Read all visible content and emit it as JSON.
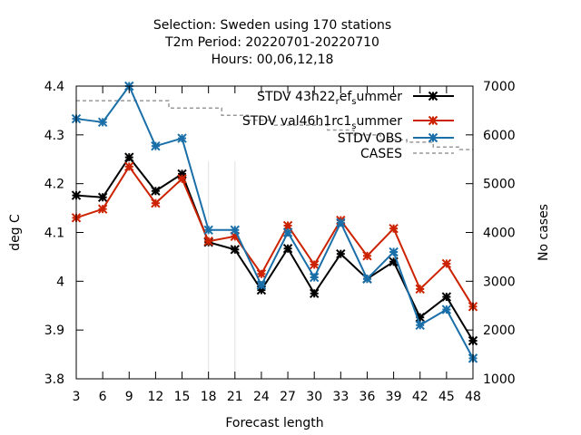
{
  "chart_data": {
    "type": "line",
    "title": [
      "Selection: Sweden using    170 stations",
      "T2m   Period: 20220701-20220710",
      "Hours:  00,06,12,18"
    ],
    "xlabel": "Forecast length",
    "ylabel": "deg C",
    "y2label": "No cases",
    "x": [
      3,
      6,
      9,
      12,
      15,
      18,
      21,
      24,
      27,
      30,
      33,
      36,
      39,
      42,
      45,
      48
    ],
    "xlim": [
      3,
      48
    ],
    "ylim": [
      3.8,
      4.4
    ],
    "y2lim": [
      1000,
      7000
    ],
    "yticks": [
      "3.8",
      "3.9",
      "4",
      "4.1",
      "4.2",
      "4.3",
      "4.4"
    ],
    "y2ticks": [
      "1000",
      "2000",
      "3000",
      "4000",
      "5000",
      "6000",
      "7000"
    ],
    "xticks": [
      "3",
      "6",
      "9",
      "12",
      "15",
      "18",
      "21",
      "24",
      "27",
      "30",
      "33",
      "36",
      "39",
      "42",
      "45",
      "48"
    ],
    "grid": false,
    "legend_position": "top-right",
    "series": [
      {
        "name": "STDV 43h22_ref_summer",
        "legend": {
          "pre": "STDV 43h22",
          "sub1": "r",
          "mid": "ef",
          "sub2": "s",
          "post": "ummer"
        },
        "color": "#000000",
        "marker": "asterisk",
        "axis": "y",
        "values": [
          4.176,
          4.172,
          4.254,
          4.185,
          4.22,
          4.08,
          4.065,
          3.982,
          4.067,
          3.975,
          4.056,
          4.005,
          4.04,
          3.926,
          3.968,
          3.878
        ]
      },
      {
        "name": "STDV val46h1rc1_summer",
        "legend": {
          "pre": "STDV val46h1rc1",
          "sub1": "",
          "mid": "",
          "sub2": "s",
          "post": "ummer"
        },
        "color": "#cc2200",
        "marker": "asterisk",
        "axis": "y",
        "values": [
          4.13,
          4.148,
          4.235,
          4.16,
          4.21,
          4.082,
          4.092,
          4.015,
          4.114,
          4.034,
          4.125,
          4.052,
          4.108,
          3.984,
          4.036,
          3.948
        ]
      },
      {
        "name": "STDV OBS",
        "legend": {
          "pre": "STDV OBS",
          "sub1": "",
          "mid": "",
          "sub2": "",
          "post": ""
        },
        "color": "#1a6fa8",
        "marker": "asterisk",
        "axis": "y",
        "values": [
          4.333,
          4.326,
          4.4,
          4.277,
          4.293,
          4.105,
          4.105,
          3.992,
          4.1,
          4.008,
          4.12,
          4.005,
          4.06,
          3.91,
          3.942,
          3.842
        ]
      },
      {
        "name": "CASES",
        "legend": {
          "pre": "CASES",
          "sub1": "",
          "mid": "",
          "sub2": "",
          "post": ""
        },
        "color": "#999999",
        "marker": "none",
        "dashed": true,
        "axis": "y2",
        "values": [
          6700,
          6700,
          6700,
          6700,
          6550,
          6550,
          6400,
          6300,
          6200,
          6200,
          6100,
          6000,
          5900,
          5850,
          5750,
          5700
        ]
      }
    ]
  }
}
